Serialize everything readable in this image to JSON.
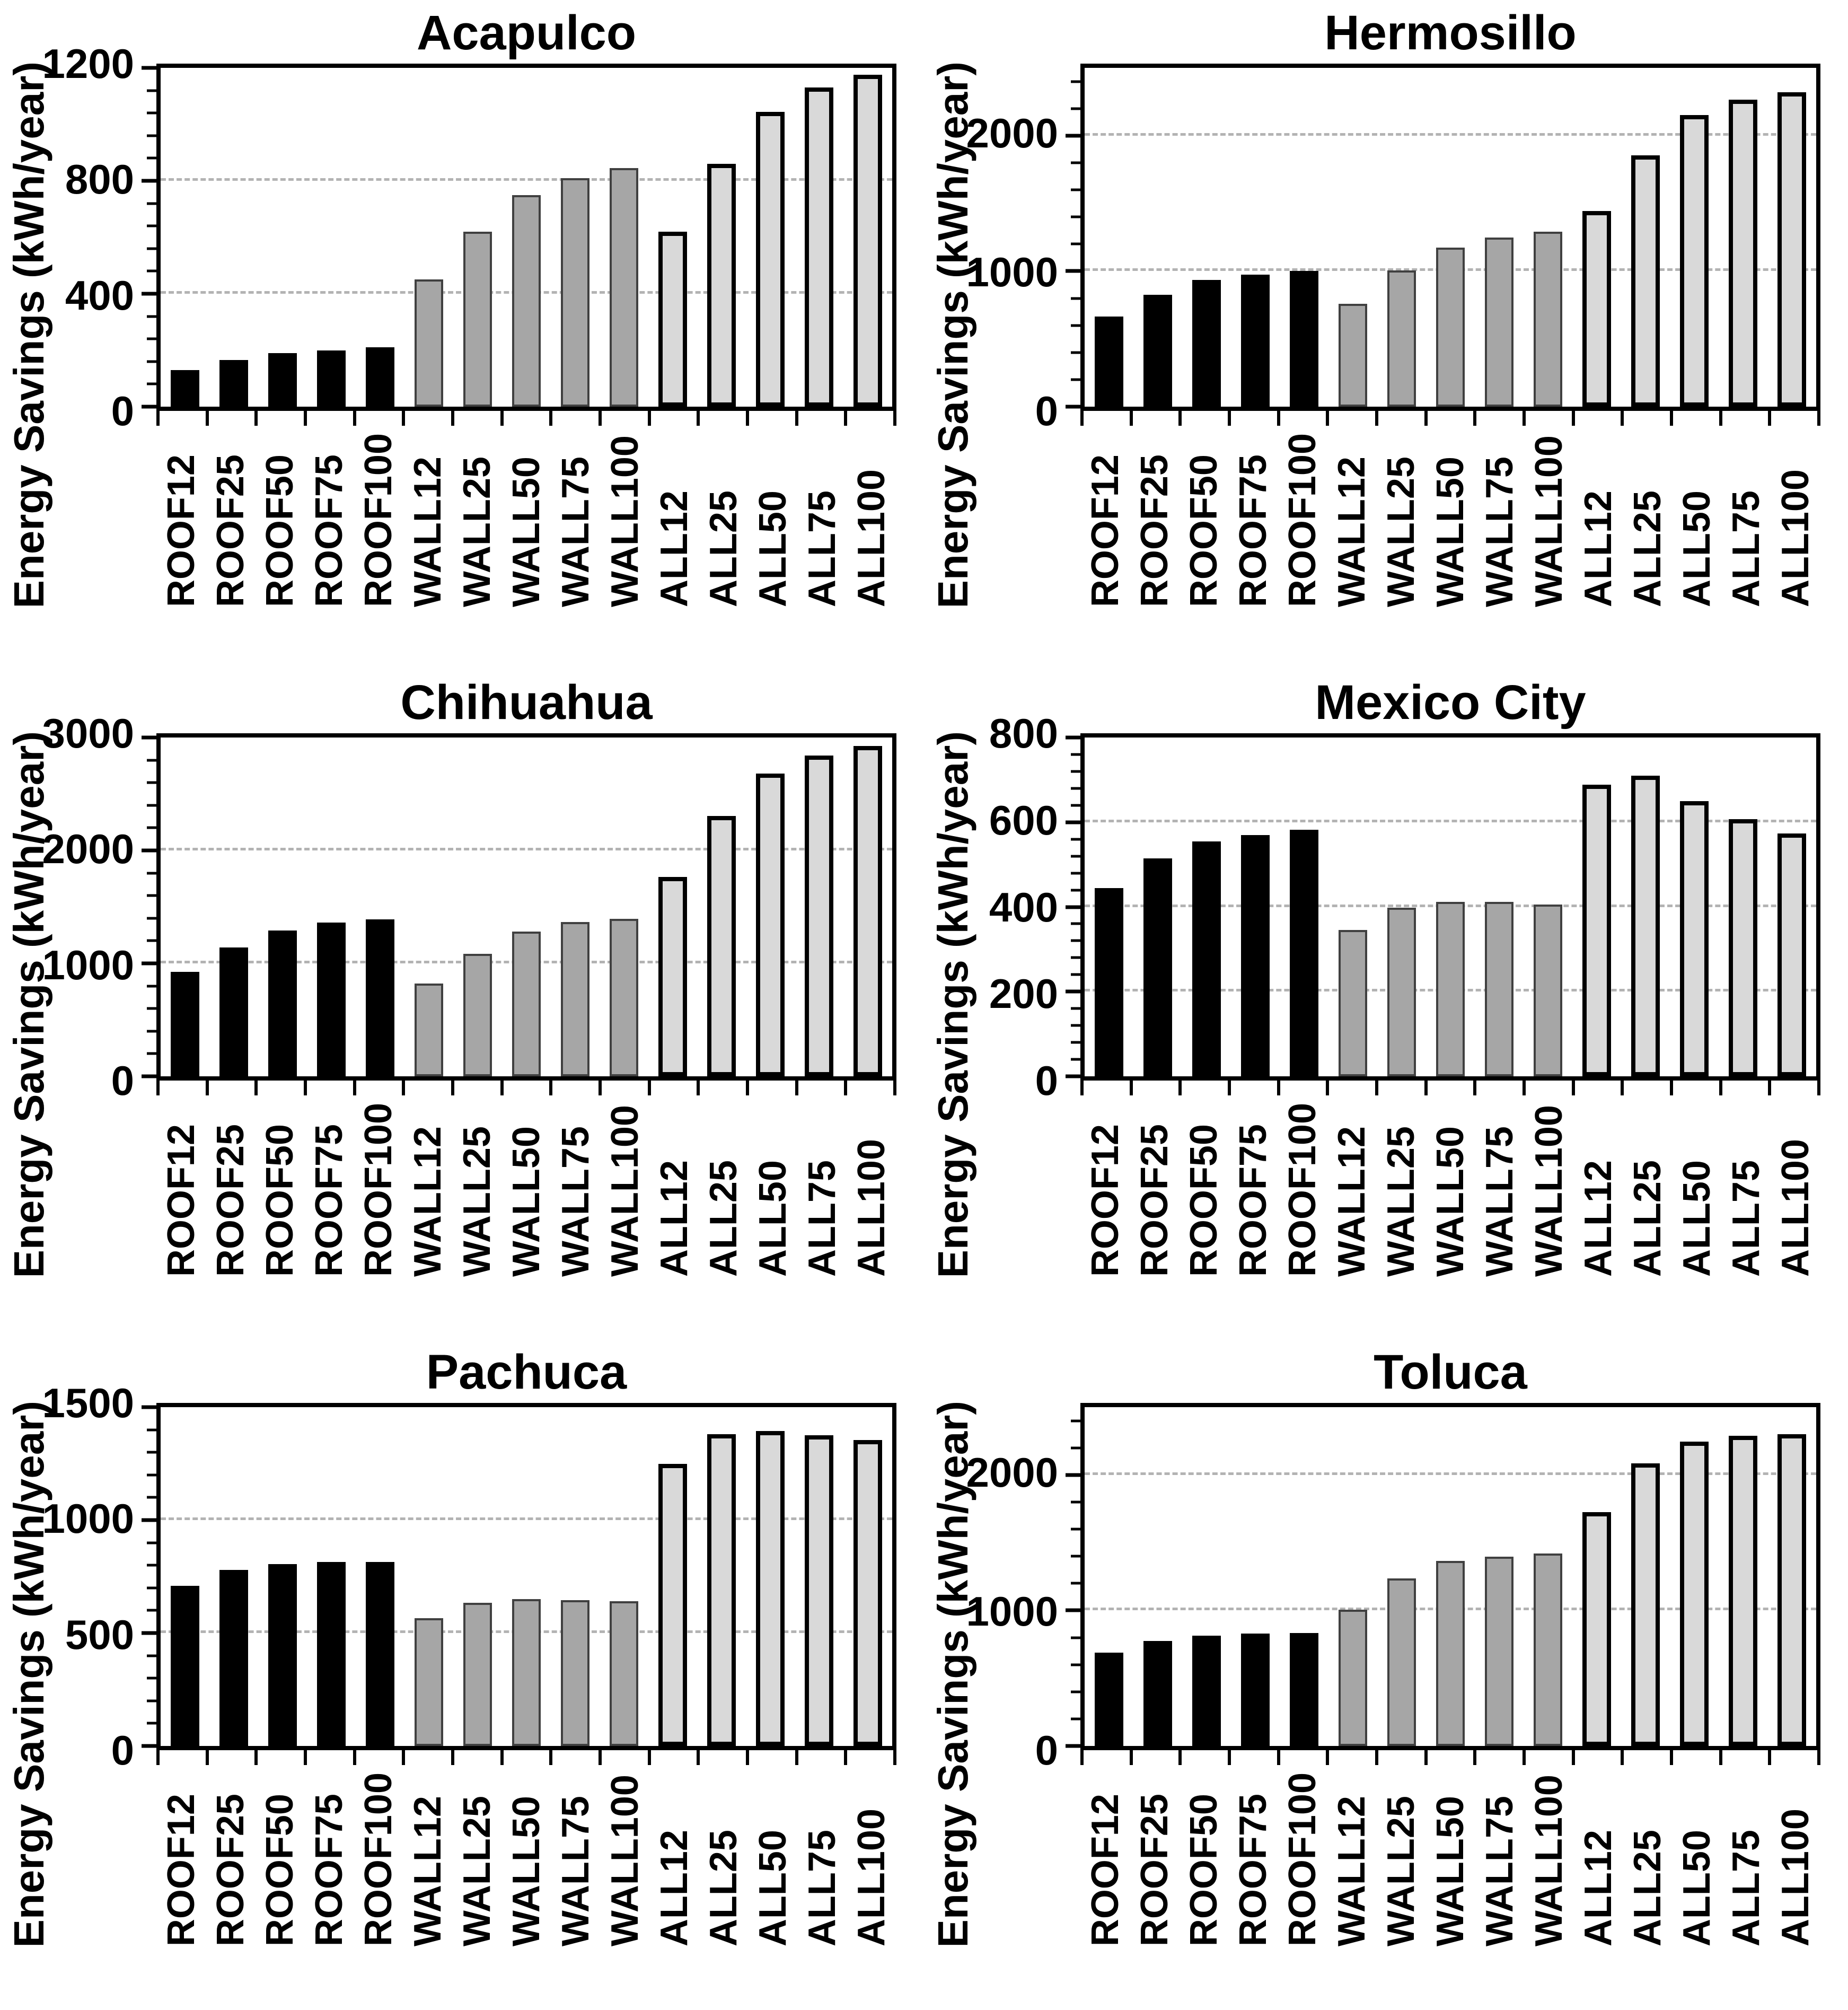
{
  "figure": {
    "ylabel": "Energy Savings (kWh/year)",
    "colors": {
      "roof_fill": "#000000",
      "wall_fill": "#a6a6a6",
      "wall_stroke": "#404040",
      "all_fill": "#d9d9d9",
      "all_stroke": "#000000",
      "gridline": "#b3b3b3",
      "axis": "#000000",
      "background": "#ffffff"
    }
  },
  "chart_data": [
    {
      "type": "bar",
      "title": "Acapulco",
      "ylabel": "Energy Savings (kWh/year)",
      "ylim": [
        0,
        1200
      ],
      "yticks": [
        0,
        400,
        800,
        1200
      ],
      "yminor": 80,
      "gridlines": [
        400,
        800
      ],
      "grid": "horizontal dashed at major ticks",
      "legend_position": "none",
      "categories": [
        "ROOF12",
        "ROOF25",
        "ROOF50",
        "ROOF75",
        "ROOF100",
        "WALL12",
        "WALL25",
        "WALL50",
        "WALL75",
        "WALL100",
        "ALL12",
        "ALL25",
        "ALL50",
        "ALL75",
        "ALL100"
      ],
      "series": [
        {
          "name": "ROOF",
          "values": [
            130,
            165,
            190,
            200,
            210
          ]
        },
        {
          "name": "WALL",
          "values": [
            450,
            620,
            750,
            810,
            845
          ]
        },
        {
          "name": "ALL",
          "values": [
            620,
            860,
            1045,
            1130,
            1175
          ]
        }
      ]
    },
    {
      "type": "bar",
      "title": "Hermosillo",
      "ylabel": "Energy Savings (kWh/year)",
      "ylim": [
        0,
        2500
      ],
      "yticks": [
        0,
        1000,
        2000
      ],
      "yminor": 200,
      "gridlines": [
        1000,
        2000
      ],
      "grid": "horizontal dashed at major ticks",
      "legend_position": "none",
      "categories": [
        "ROOF12",
        "ROOF25",
        "ROOF50",
        "ROOF75",
        "ROOF100",
        "WALL12",
        "WALL25",
        "WALL50",
        "WALL75",
        "WALL100",
        "ALL12",
        "ALL25",
        "ALL50",
        "ALL75",
        "ALL100"
      ],
      "series": [
        {
          "name": "ROOF",
          "values": [
            665,
            825,
            935,
            975,
            1000
          ]
        },
        {
          "name": "WALL",
          "values": [
            760,
            1005,
            1175,
            1250,
            1290
          ]
        },
        {
          "name": "ALL",
          "values": [
            1445,
            1855,
            2150,
            2265,
            2320
          ]
        }
      ]
    },
    {
      "type": "bar",
      "title": "Chihuahua",
      "ylabel": "Energy Savings (kWh/year)",
      "ylim": [
        0,
        3000
      ],
      "yticks": [
        0,
        1000,
        2000,
        3000
      ],
      "yminor": 200,
      "gridlines": [
        1000,
        2000
      ],
      "grid": "horizontal dashed at major ticks",
      "legend_position": "none",
      "categories": [
        "ROOF12",
        "ROOF25",
        "ROOF50",
        "ROOF75",
        "ROOF100",
        "WALL12",
        "WALL25",
        "WALL50",
        "WALL75",
        "WALL100",
        "ALL12",
        "ALL25",
        "ALL50",
        "ALL75",
        "ALL100"
      ],
      "series": [
        {
          "name": "ROOF",
          "values": [
            925,
            1140,
            1290,
            1360,
            1390
          ]
        },
        {
          "name": "WALL",
          "values": [
            820,
            1085,
            1280,
            1365,
            1395
          ]
        },
        {
          "name": "ALL",
          "values": [
            1765,
            2305,
            2680,
            2840,
            2925
          ]
        }
      ]
    },
    {
      "type": "bar",
      "title": "Mexico City",
      "ylabel": "Energy Savings (kWh/year)",
      "ylim": [
        0,
        800
      ],
      "yticks": [
        0,
        200,
        400,
        600,
        800
      ],
      "yminor": 40,
      "gridlines": [
        200,
        400,
        600
      ],
      "grid": "horizontal dashed at major ticks",
      "legend_position": "none",
      "categories": [
        "ROOF12",
        "ROOF25",
        "ROOF50",
        "ROOF75",
        "ROOF100",
        "WALL12",
        "WALL25",
        "WALL50",
        "WALL75",
        "WALL100",
        "ALL12",
        "ALL25",
        "ALL50",
        "ALL75",
        "ALL100"
      ],
      "series": [
        {
          "name": "ROOF",
          "values": [
            445,
            515,
            555,
            570,
            582
          ]
        },
        {
          "name": "WALL",
          "values": [
            345,
            398,
            412,
            412,
            406
          ]
        },
        {
          "name": "ALL",
          "values": [
            688,
            710,
            650,
            607,
            574
          ]
        }
      ]
    },
    {
      "type": "bar",
      "title": "Pachuca",
      "ylabel": "Energy Savings (kWh/year)",
      "ylim": [
        0,
        1500
      ],
      "yticks": [
        0,
        500,
        1000,
        1500
      ],
      "yminor": 100,
      "gridlines": [
        500,
        1000
      ],
      "grid": "horizontal dashed at major ticks",
      "legend_position": "none",
      "categories": [
        "ROOF12",
        "ROOF25",
        "ROOF50",
        "ROOF75",
        "ROOF100",
        "WALL12",
        "WALL25",
        "WALL50",
        "WALL75",
        "WALL100",
        "ALL12",
        "ALL25",
        "ALL50",
        "ALL75",
        "ALL100"
      ],
      "series": [
        {
          "name": "ROOF",
          "values": [
            710,
            780,
            805,
            815,
            815
          ]
        },
        {
          "name": "WALL",
          "values": [
            565,
            635,
            650,
            645,
            640
          ]
        },
        {
          "name": "ALL",
          "values": [
            1250,
            1380,
            1395,
            1375,
            1355
          ]
        }
      ]
    },
    {
      "type": "bar",
      "title": "Toluca",
      "ylabel": "Energy Savings (kWh/year)",
      "ylim": [
        0,
        2500
      ],
      "yticks": [
        0,
        1000,
        2000
      ],
      "yminor": 200,
      "gridlines": [
        1000,
        2000
      ],
      "grid": "horizontal dashed at major ticks",
      "legend_position": "none",
      "categories": [
        "ROOF12",
        "ROOF25",
        "ROOF50",
        "ROOF75",
        "ROOF100",
        "WALL12",
        "WALL25",
        "WALL50",
        "WALL75",
        "WALL100",
        "ALL12",
        "ALL25",
        "ALL50",
        "ALL75",
        "ALL100"
      ],
      "series": [
        {
          "name": "ROOF",
          "values": [
            690,
            775,
            815,
            830,
            835
          ]
        },
        {
          "name": "WALL",
          "values": [
            1005,
            1235,
            1365,
            1395,
            1420
          ]
        },
        {
          "name": "ALL",
          "values": [
            1725,
            2085,
            2245,
            2290,
            2300
          ]
        }
      ]
    }
  ]
}
